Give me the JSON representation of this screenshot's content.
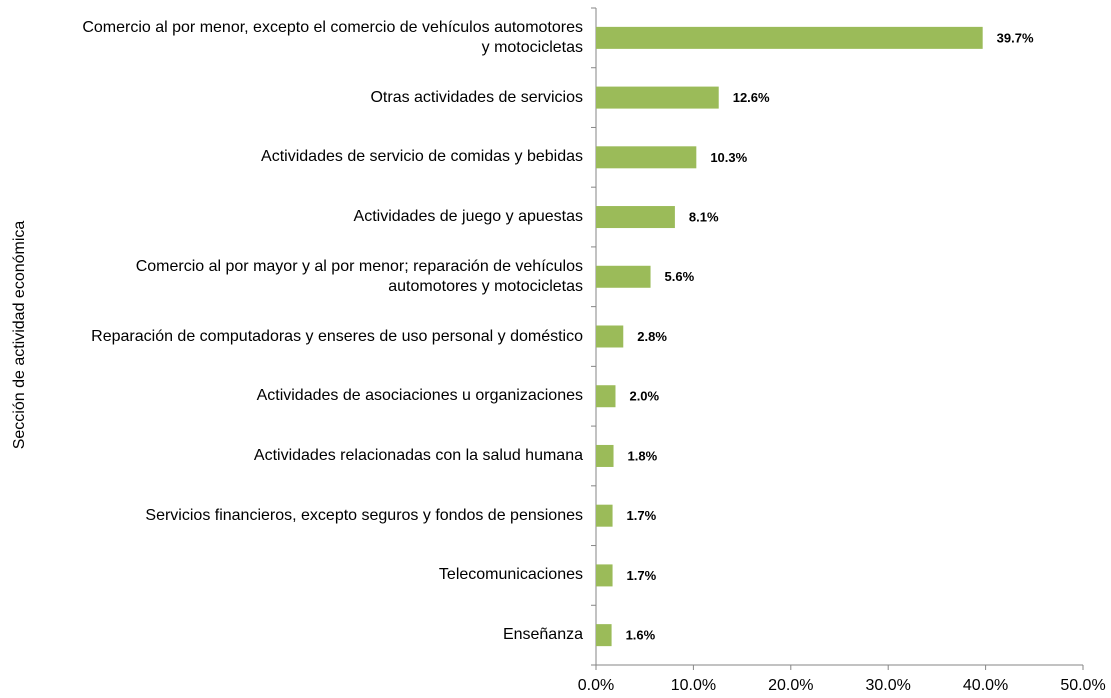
{
  "chart_data": {
    "type": "barh",
    "y_label": "Sección de actividad económica",
    "categories": [
      "Comercio al por menor, excepto el comercio de vehículos automotores\ny motocicletas",
      "Otras actividades de servicios",
      "Actividades de servicio de comidas y bebidas",
      "Actividades de juego y apuestas",
      "Comercio al por mayor y al por menor; reparación de vehículos\nautomotores y motocicletas",
      "Reparación de computadoras y enseres de uso personal y doméstico",
      "Actividades de asociaciones u organizaciones",
      "Actividades relacionadas con la salud humana",
      "Servicios financieros, excepto seguros y fondos de pensiones",
      "Telecomunicaciones",
      "Enseñanza"
    ],
    "values": [
      39.7,
      12.6,
      10.3,
      8.1,
      5.6,
      2.8,
      2.0,
      1.8,
      1.7,
      1.7,
      1.6
    ],
    "value_labels": [
      "39.7%",
      "12.6%",
      "10.3%",
      "8.1%",
      "5.6%",
      "2.8%",
      "2.0%",
      "1.8%",
      "1.7%",
      "1.7%",
      "1.6%"
    ],
    "color": "#9bbb59",
    "xlim": [
      0,
      50
    ],
    "xticks": [
      {
        "value": 0,
        "label": "0.0%"
      },
      {
        "value": 10,
        "label": "10.0%"
      },
      {
        "value": 20,
        "label": "20.0%"
      },
      {
        "value": 30,
        "label": "30.0%"
      },
      {
        "value": 40,
        "label": "40.0%"
      },
      {
        "value": 50,
        "label": "50.0%"
      }
    ],
    "grid": false
  }
}
